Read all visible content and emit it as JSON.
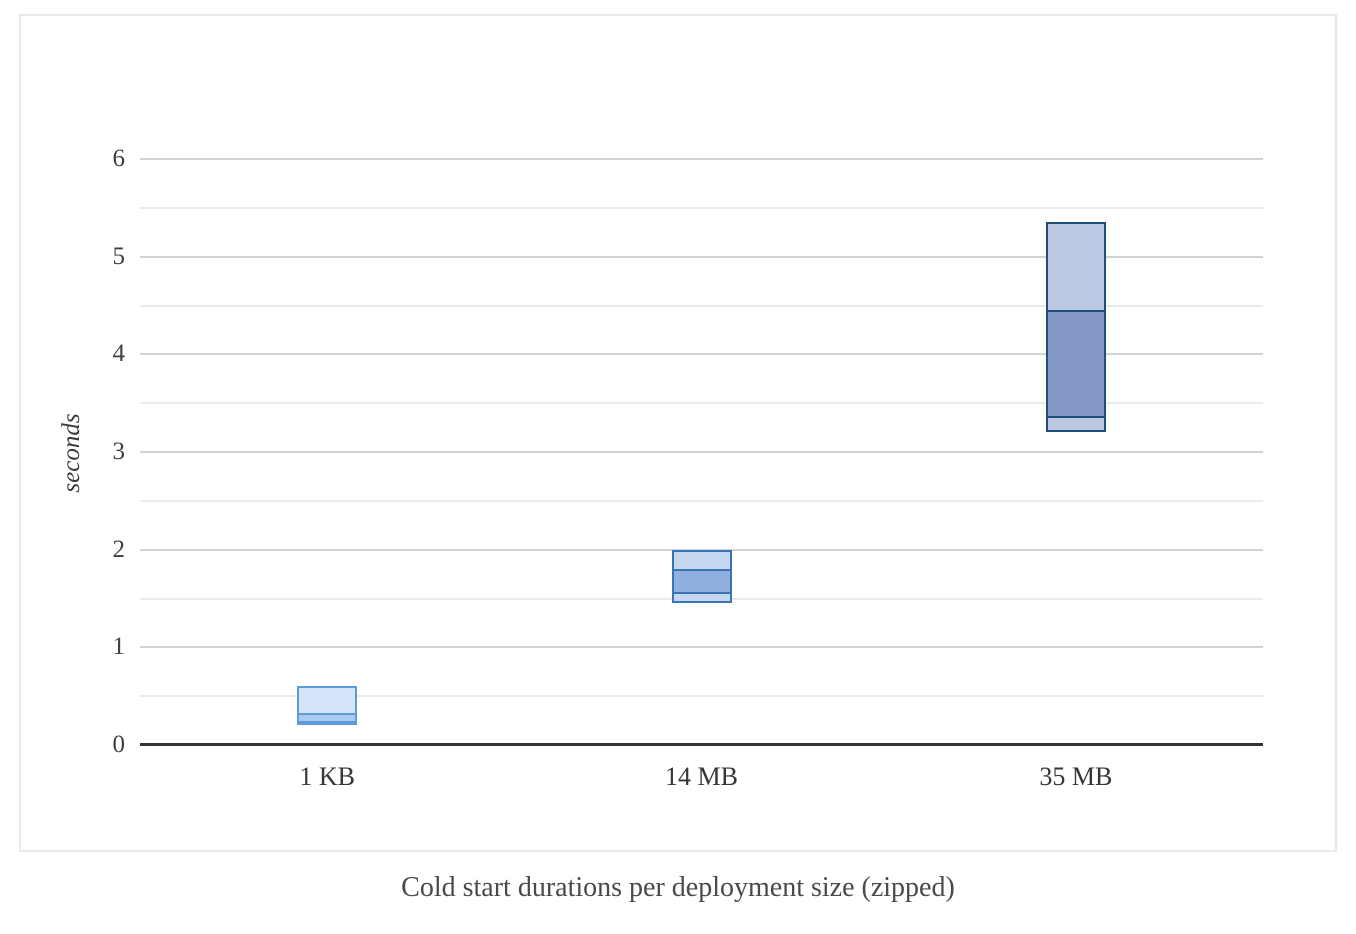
{
  "title": "Cold start durations per deployment size (zipped)",
  "chart_data": {
    "type": "range-bar",
    "title": "Cold start durations per deployment size (zipped)",
    "xlabel": "",
    "ylabel": "seconds",
    "categories": [
      "1 KB",
      "14 MB",
      "35 MB"
    ],
    "ylim": [
      0,
      6.5
    ],
    "yticks": [
      0,
      1,
      2,
      3,
      4,
      5,
      6
    ],
    "minor_gridline_step": 0.5,
    "minor_gridline_max": 5.5,
    "grid": true,
    "legend": "none",
    "bars": [
      {
        "category": "1 KB",
        "range_low_s": 0.2,
        "range_high_s": 0.6,
        "inner_range_low_s": 0.23,
        "inner_range_high_s": 0.33,
        "border_color": "#5E9CD9",
        "fill_color": "#D5E5F9",
        "inner_fill_color": "#A9C9F0"
      },
      {
        "category": "14 MB",
        "range_low_s": 1.45,
        "range_high_s": 2.0,
        "inner_range_low_s": 1.55,
        "inner_range_high_s": 1.8,
        "border_color": "#3A74B4",
        "fill_color": "#C6D8EF",
        "inner_fill_color": "#8FB0DE"
      },
      {
        "category": "35 MB",
        "range_low_s": 3.2,
        "range_high_s": 5.35,
        "inner_range_low_s": 3.35,
        "inner_range_high_s": 4.45,
        "border_color": "#1F4E79",
        "fill_color": "#BDC9E3",
        "inner_fill_color": "#8398C4"
      }
    ]
  },
  "colors": {
    "card_border": "#e9e9e9",
    "axis_line": "#333333",
    "major_gridline": "#d3d3d3",
    "minor_gridline": "#ebebeb",
    "tick_text": "#3f3f3f",
    "title_text": "#4a4a4a",
    "background": "#ffffff"
  }
}
